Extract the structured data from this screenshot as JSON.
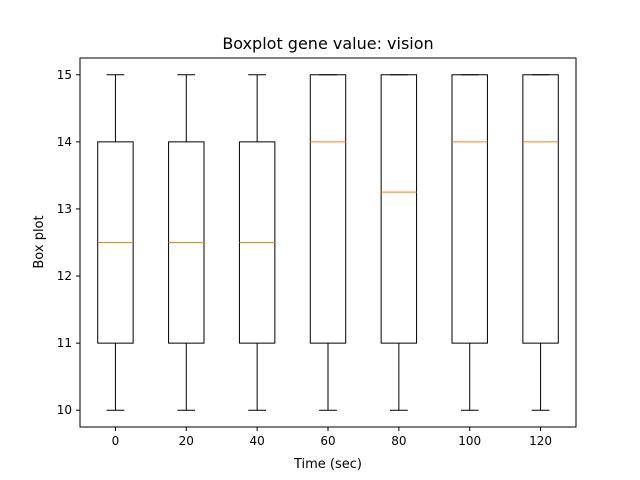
{
  "chart_data": {
    "type": "boxplot",
    "title": "Boxplot gene value: vision",
    "xlabel": "Time (sec)",
    "ylabel": "Box plot",
    "categories": [
      "0",
      "20",
      "40",
      "60",
      "80",
      "100",
      "120"
    ],
    "boxes": [
      {
        "category": "0",
        "min": 10,
        "q1": 11,
        "median": 12.5,
        "q3": 14,
        "max": 15
      },
      {
        "category": "20",
        "min": 10,
        "q1": 11,
        "median": 12.5,
        "q3": 14,
        "max": 15
      },
      {
        "category": "40",
        "min": 10,
        "q1": 11,
        "median": 12.5,
        "q3": 14,
        "max": 15
      },
      {
        "category": "60",
        "min": 10,
        "q1": 11,
        "median": 14,
        "q3": 15,
        "max": 15
      },
      {
        "category": "80",
        "min": 10,
        "q1": 11,
        "median": 13.25,
        "q3": 15,
        "max": 15
      },
      {
        "category": "100",
        "min": 10,
        "q1": 11,
        "median": 14,
        "q3": 15,
        "max": 15
      },
      {
        "category": "120",
        "min": 10,
        "q1": 11,
        "median": 14,
        "q3": 15,
        "max": 15
      }
    ],
    "yticks": [
      10,
      11,
      12,
      13,
      14,
      15
    ],
    "ylim": [
      9.75,
      15.25
    ],
    "grid": false,
    "colors": {
      "box": "#000000",
      "median": "#ff7f0e"
    }
  }
}
